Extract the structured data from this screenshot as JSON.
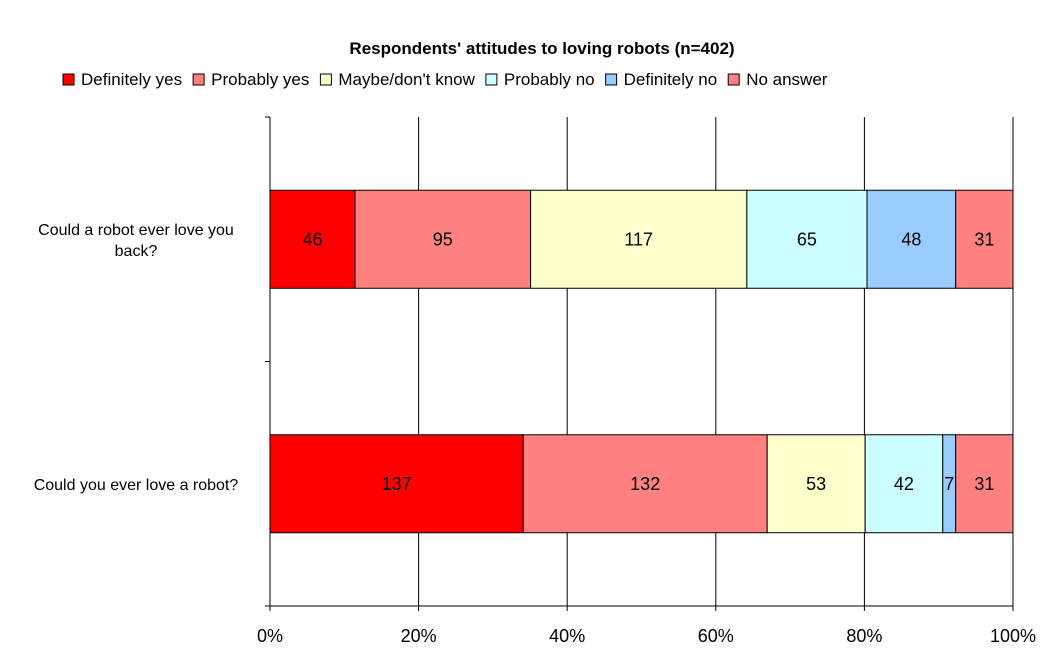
{
  "chart_data": {
    "type": "bar",
    "orientation": "horizontal",
    "stacked": "percent",
    "title": "Respondents' attitudes to loving robots (n=402)",
    "categories": [
      "Could a robot ever love you back?",
      "Could you ever love a robot?"
    ],
    "category_lines": [
      [
        "Could a robot ever love you",
        "back?"
      ],
      [
        "Could you ever love a robot?"
      ]
    ],
    "series": [
      {
        "name": "Definitely yes",
        "color": "#ff0000",
        "values": [
          46,
          137
        ]
      },
      {
        "name": "Probably yes",
        "color": "#ff8080",
        "values": [
          95,
          132
        ]
      },
      {
        "name": "Maybe/don't know",
        "color": "#ffffcc",
        "values": [
          117,
          53
        ]
      },
      {
        "name": "Probably no",
        "color": "#ccffff",
        "values": [
          65,
          42
        ]
      },
      {
        "name": "Definitely no",
        "color": "#99ccff",
        "values": [
          48,
          7
        ]
      },
      {
        "name": "No answer",
        "color": "#ff8080",
        "values": [
          31,
          31
        ]
      }
    ],
    "x_ticks": [
      "0%",
      "20%",
      "40%",
      "60%",
      "80%",
      "100%"
    ],
    "xlim": [
      0,
      100
    ],
    "grid": "vertical",
    "legend_position": "top"
  }
}
